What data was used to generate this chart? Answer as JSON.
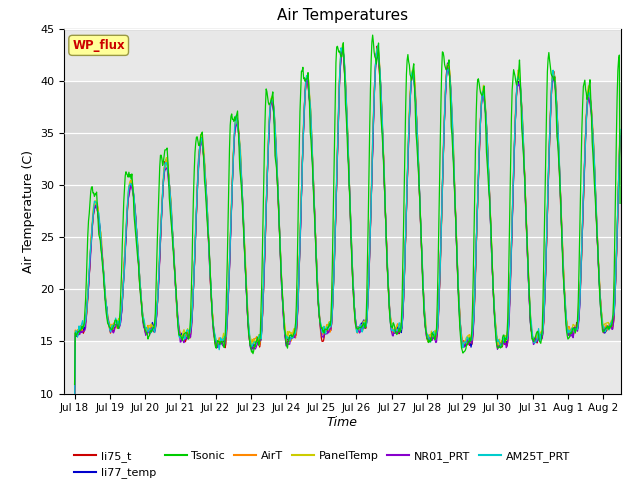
{
  "title": "Air Temperatures",
  "xlabel": "Time",
  "ylabel": "Air Temperature (C)",
  "ylim": [
    10,
    45
  ],
  "yticks": [
    10,
    15,
    20,
    25,
    30,
    35,
    40,
    45
  ],
  "xtick_labels": [
    "Jul 18",
    "Jul 19",
    "Jul 20",
    "Jul 21",
    "Jul 22",
    "Jul 23",
    "Jul 24",
    "Jul 25",
    "Jul 26",
    "Jul 27",
    "Jul 28",
    "Jul 29",
    "Jul 30",
    "Jul 31",
    "Aug 1",
    "Aug 2"
  ],
  "series_colors": {
    "li75_t": "#cc0000",
    "li77_temp": "#0000cc",
    "Tsonic": "#00cc00",
    "AirT": "#ff8800",
    "PanelTemp": "#cccc00",
    "NR01_PRT": "#8800cc",
    "AM25T_PRT": "#00cccc"
  },
  "annotation_text": "WP_flux",
  "annotation_color": "#cc0000",
  "annotation_bg": "#ffff99",
  "plot_bg": "#e8e8e8",
  "fig_bg": "#ffffff",
  "shaded_bg": "#d8d8d8",
  "shade_low": 15,
  "shade_high": 40
}
